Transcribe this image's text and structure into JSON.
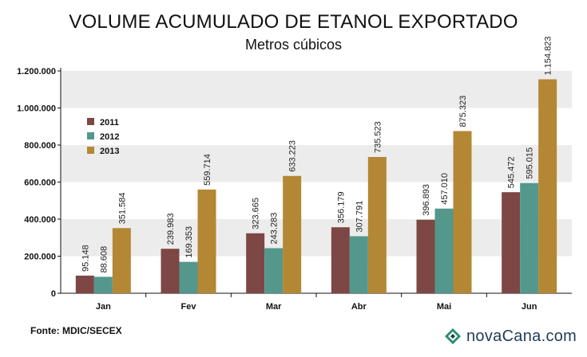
{
  "header": {
    "title": "VOLUME ACUMULADO DE ETANOL EXPORTADO",
    "subtitle": "Metros cúbicos"
  },
  "footer": {
    "source": "Fonte: MDIC/SECEX",
    "logo_text": "novaCana.com"
  },
  "colors": {
    "s2011": "#7d4745",
    "s2012": "#54978c",
    "s2013": "#b38734",
    "band": "#ececec"
  },
  "chart_data": {
    "type": "bar",
    "title": "VOLUME ACUMULADO DE ETANOL EXPORTADO",
    "subtitle": "Metros cúbicos",
    "xlabel": "",
    "ylabel": "",
    "categories": [
      "Jan",
      "Fev",
      "Mar",
      "Abr",
      "Mai",
      "Jun"
    ],
    "ylim": [
      0,
      1200000
    ],
    "yticks": [
      0,
      200000,
      400000,
      600000,
      800000,
      1000000,
      1200000
    ],
    "ytick_labels": [
      "0",
      "200.000",
      "400.000",
      "600.000",
      "800.000",
      "1.000.000",
      "1.200.000"
    ],
    "grid": "alternating horizontal bands",
    "legend_position": "top-left",
    "series": [
      {
        "name": "2011",
        "values": [
          95148,
          239983,
          323665,
          356179,
          396893,
          545472
        ],
        "labels": [
          "95.148",
          "239.983",
          "323.665",
          "356.179",
          "396.893",
          "545.472"
        ]
      },
      {
        "name": "2012",
        "values": [
          88608,
          169353,
          243283,
          307791,
          457010,
          595015
        ],
        "labels": [
          "88.608",
          "169.353",
          "243.283",
          "307.791",
          "457.010",
          "595.015"
        ]
      },
      {
        "name": "2013",
        "values": [
          351584,
          559714,
          633223,
          735523,
          875323,
          1154823
        ],
        "labels": [
          "351.584",
          "559.714",
          "633.223",
          "735.523",
          "875.323",
          "1.154.823"
        ]
      }
    ]
  }
}
